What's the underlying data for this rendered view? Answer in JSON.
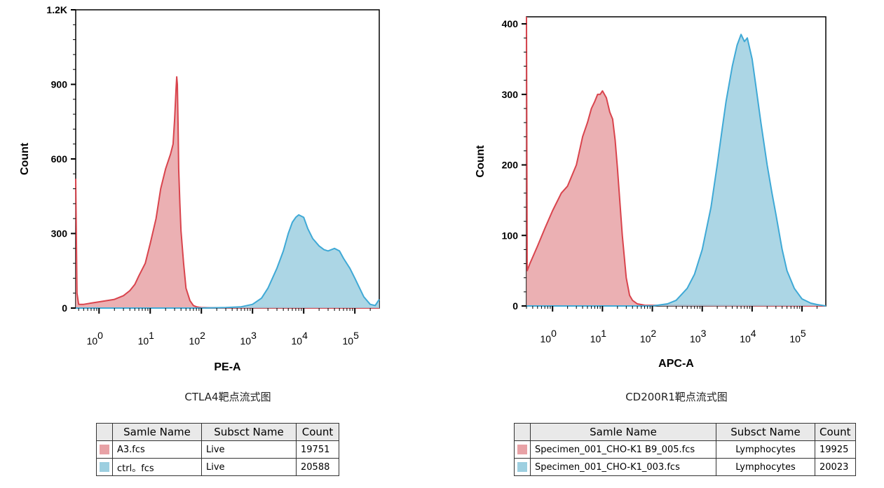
{
  "chart_data": [
    {
      "type": "area",
      "caption": "CTLA4靶点流式图",
      "xlabel": "PE-A",
      "ylabel": "Count",
      "x_scale": "log",
      "xlim": [
        0.35,
        300000
      ],
      "ylim": [
        0,
        1200
      ],
      "y_ticks": [
        0,
        300,
        600,
        900,
        1200
      ],
      "y_tick_labels": [
        "0",
        "300",
        "600",
        "900",
        "1.2K"
      ],
      "x_tick_labels": [
        {
          "base": "10",
          "exp": "0"
        },
        {
          "base": "10",
          "exp": "1"
        },
        {
          "base": "10",
          "exp": "2"
        },
        {
          "base": "10",
          "exp": "3"
        },
        {
          "base": "10",
          "exp": "4"
        },
        {
          "base": "10",
          "exp": "5"
        }
      ],
      "series": [
        {
          "file": "A3.fcs",
          "color": "#d9444d",
          "fill": "#e8a2a6",
          "x": [
            0.35,
            0.37,
            0.4,
            0.5,
            0.7,
            1,
            2,
            3,
            4,
            5,
            6,
            8,
            10,
            13,
            16,
            20,
            25,
            28,
            30,
            32,
            33,
            34,
            35,
            36,
            38,
            40,
            45,
            50,
            60,
            70,
            80,
            90,
            100,
            150,
            300000
          ],
          "values": [
            520,
            60,
            15,
            15,
            20,
            25,
            35,
            50,
            70,
            95,
            130,
            180,
            260,
            360,
            480,
            560,
            620,
            660,
            760,
            880,
            930,
            900,
            740,
            560,
            420,
            310,
            180,
            80,
            30,
            10,
            5,
            3,
            2,
            1,
            0
          ]
        },
        {
          "file": "ctrl.fcs",
          "color": "#3fa9d6",
          "fill": "#9dcfe0",
          "x": [
            0.35,
            100,
            300,
            600,
            1000,
            1500,
            2000,
            3000,
            4000,
            5000,
            6000,
            7000,
            8000,
            10000,
            12000,
            15000,
            20000,
            25000,
            30000,
            40000,
            50000,
            60000,
            80000,
            100000,
            150000,
            200000,
            250000,
            300000
          ],
          "values": [
            0,
            0,
            2,
            5,
            15,
            40,
            80,
            160,
            230,
            300,
            345,
            365,
            375,
            365,
            320,
            280,
            250,
            235,
            230,
            240,
            230,
            200,
            160,
            120,
            45,
            15,
            10,
            35
          ]
        }
      ],
      "legend_table": {
        "headers": [
          "Samle Name",
          "Subsct Name",
          "Count"
        ],
        "rows": [
          {
            "color": "#e8a2a6",
            "name": "A3.fcs",
            "subset": "Live",
            "count": "19751"
          },
          {
            "color": "#9dcfe0",
            "name": "ctrl。fcs",
            "subset": "Live",
            "count": "20588"
          }
        ]
      }
    },
    {
      "type": "area",
      "caption": "CD200R1靶点流式图",
      "xlabel": "APC-A",
      "ylabel": "Count",
      "x_scale": "log",
      "xlim": [
        0.3,
        300000
      ],
      "ylim": [
        0,
        410
      ],
      "y_ticks": [
        0,
        100,
        200,
        300,
        400
      ],
      "y_tick_labels": [
        "0",
        "100",
        "200",
        "300",
        "400"
      ],
      "x_tick_labels": [
        {
          "base": "10",
          "exp": "0"
        },
        {
          "base": "10",
          "exp": "1"
        },
        {
          "base": "10",
          "exp": "2"
        },
        {
          "base": "10",
          "exp": "3"
        },
        {
          "base": "10",
          "exp": "4"
        },
        {
          "base": "10",
          "exp": "5"
        }
      ],
      "series": [
        {
          "file": "Specimen_001_CHO-K1 B9_005.fcs",
          "color": "#d9444d",
          "fill": "#e8a2a6",
          "x": [
            0.3,
            0.31,
            0.35,
            0.5,
            0.7,
            1,
            1.5,
            2,
            3,
            4,
            5,
            6,
            7,
            8,
            9,
            10,
            12,
            14,
            16,
            18,
            20,
            25,
            30,
            35,
            40,
            50,
            60,
            70,
            300000
          ],
          "values": [
            410,
            50,
            60,
            85,
            110,
            135,
            160,
            170,
            200,
            240,
            260,
            280,
            290,
            300,
            300,
            305,
            295,
            275,
            265,
            235,
            195,
            100,
            40,
            15,
            8,
            3,
            2,
            1,
            0
          ]
        },
        {
          "file": "Specimen_001_CHO-K1_003.fcs",
          "color": "#3fa9d6",
          "fill": "#9dcfe0",
          "x": [
            0.3,
            100,
            200,
            300,
            500,
            700,
            1000,
            1500,
            2000,
            2500,
            3000,
            4000,
            5000,
            6000,
            7000,
            8000,
            10000,
            12000,
            15000,
            20000,
            25000,
            30000,
            40000,
            50000,
            70000,
            100000,
            150000,
            200000,
            300000
          ],
          "values": [
            0,
            0,
            3,
            8,
            25,
            45,
            80,
            140,
            200,
            250,
            290,
            340,
            370,
            385,
            375,
            380,
            350,
            310,
            260,
            200,
            160,
            130,
            80,
            50,
            25,
            10,
            4,
            2,
            0
          ]
        }
      ],
      "legend_table": {
        "headers": [
          "Samle Name",
          "Subsct Name",
          "Count"
        ],
        "rows": [
          {
            "color": "#e8a2a6",
            "name": "Specimen_001_CHO-K1 B9_005.fcs",
            "subset": "Lymphocytes",
            "count": "19925"
          },
          {
            "color": "#9dcfe0",
            "name": "Specimen_001_CHO-K1_003.fcs",
            "subset": "Lymphocytes",
            "count": "20023"
          }
        ]
      }
    }
  ]
}
